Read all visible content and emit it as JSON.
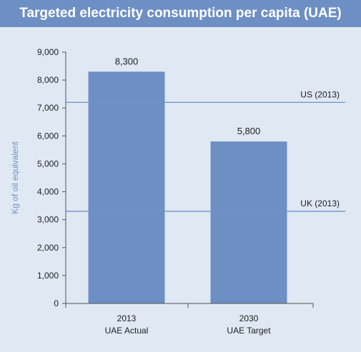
{
  "chart_data": {
    "type": "bar",
    "title": "Targeted electricity consumption per capita (UAE)",
    "ylabel": "Kg of oil equivalent",
    "xlabel": "",
    "categories": [
      [
        "2013",
        "UAE Actual"
      ],
      [
        "2030",
        "UAE Target"
      ]
    ],
    "values": [
      8300,
      5800
    ],
    "data_labels": [
      "8,300",
      "5,800"
    ],
    "ylim": [
      0,
      9000
    ],
    "yticks": [
      0,
      1000,
      2000,
      3000,
      4000,
      5000,
      6000,
      7000,
      8000,
      9000
    ],
    "ytick_labels": [
      "0",
      "1,000",
      "2,000",
      "3,000",
      "4,000",
      "5,000",
      "6,000",
      "7,000",
      "8,000",
      "9,000"
    ],
    "reference_lines": [
      {
        "label": "US (2013)",
        "value": 7200
      },
      {
        "label": "UK (2013)",
        "value": 3300
      }
    ],
    "grid": false,
    "legend": "none"
  },
  "colors": {
    "background": "#dfe8f3",
    "title_bar": "#6e8fc4",
    "bar": "#6e8fc4",
    "axis": "#555555",
    "reference_line": "#6f93c8",
    "ylabel": "#6f93c8"
  }
}
